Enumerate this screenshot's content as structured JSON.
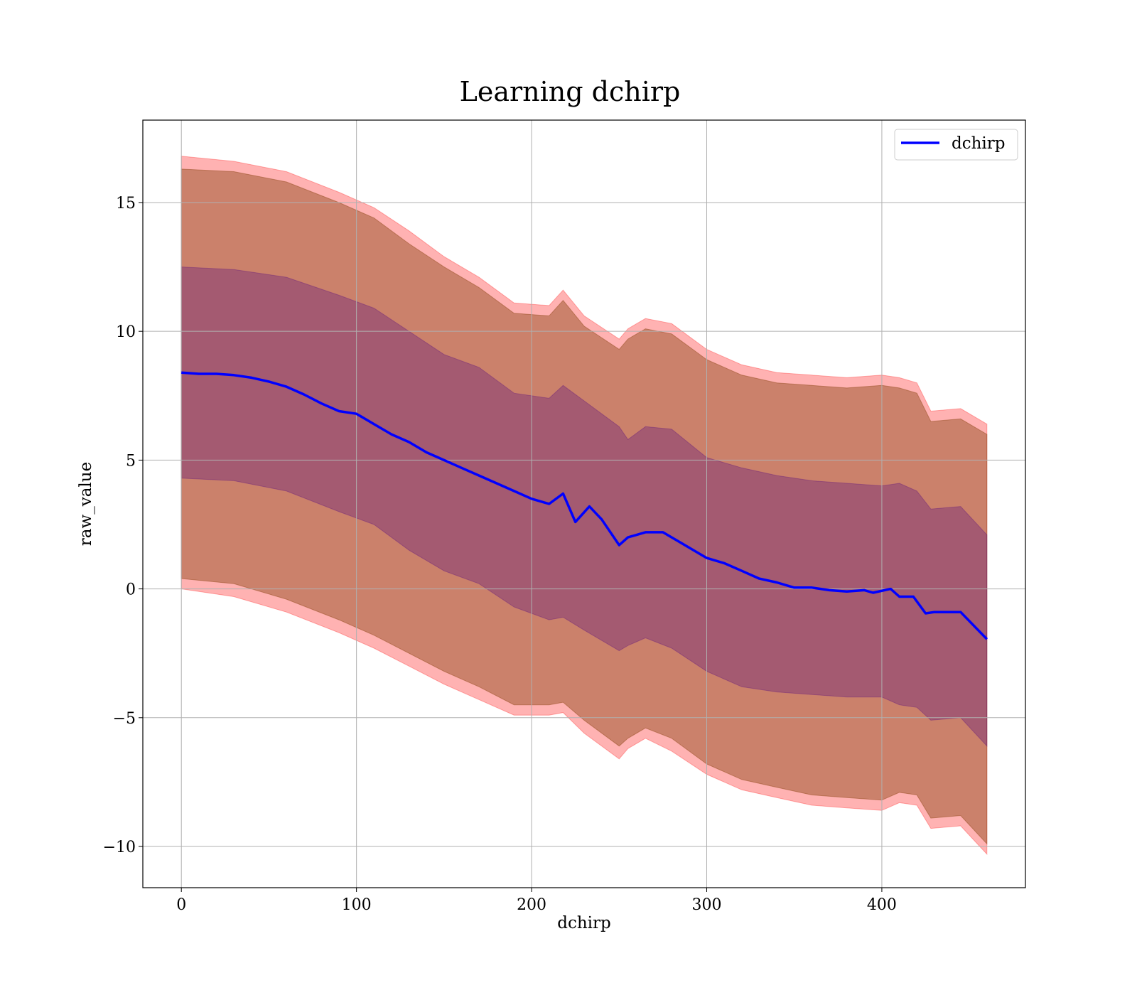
{
  "chart_data": {
    "type": "line",
    "title": "Learning dchirp",
    "xlabel": "dchirp",
    "ylabel": "raw_value",
    "xlim": [
      -22,
      482
    ],
    "ylim": [
      -11.6,
      18.2
    ],
    "xticks": [
      0,
      100,
      200,
      300,
      400
    ],
    "yticks": [
      -10,
      -5,
      0,
      5,
      10,
      15
    ],
    "ytick_labels": [
      "−10",
      "−5",
      "0",
      "5",
      "10",
      "15"
    ],
    "xtick_labels": [
      "0",
      "100",
      "200",
      "300",
      "400"
    ],
    "grid": true,
    "legend_position": "top-right",
    "series": [
      {
        "name": "dchirp",
        "color": "#0000ff",
        "x": [
          0,
          10,
          20,
          30,
          40,
          50,
          60,
          70,
          80,
          90,
          100,
          110,
          120,
          130,
          140,
          150,
          160,
          170,
          180,
          190,
          200,
          210,
          218,
          225,
          233,
          240,
          250,
          255,
          265,
          275,
          280,
          290,
          300,
          310,
          320,
          330,
          340,
          350,
          360,
          370,
          380,
          390,
          395,
          405,
          410,
          418,
          425,
          430,
          445,
          460
        ],
        "values": [
          8.4,
          8.35,
          8.35,
          8.3,
          8.2,
          8.05,
          7.85,
          7.55,
          7.2,
          6.9,
          6.8,
          6.4,
          6.0,
          5.7,
          5.3,
          5.0,
          4.7,
          4.4,
          4.1,
          3.8,
          3.5,
          3.3,
          3.7,
          2.6,
          3.2,
          2.7,
          1.7,
          2.0,
          2.2,
          2.2,
          2.0,
          1.6,
          1.2,
          1.0,
          0.7,
          0.4,
          0.25,
          0.05,
          0.05,
          -0.05,
          -0.1,
          -0.05,
          -0.15,
          0.0,
          -0.3,
          -0.3,
          -0.95,
          -0.9,
          -0.9,
          -1.95
        ]
      }
    ],
    "bands": [
      {
        "color": "#ff0000",
        "opacity": 0.3,
        "x": [
          0,
          30,
          60,
          90,
          110,
          130,
          150,
          170,
          190,
          210,
          218,
          230,
          250,
          255,
          265,
          280,
          300,
          320,
          340,
          360,
          380,
          400,
          410,
          420,
          428,
          445,
          460
        ],
        "lower": [
          0,
          -0.3,
          -0.9,
          -1.7,
          -2.3,
          -3.0,
          -3.7,
          -4.3,
          -4.9,
          -4.9,
          -4.8,
          -5.6,
          -6.6,
          -6.2,
          -5.8,
          -6.3,
          -7.2,
          -7.8,
          -8.1,
          -8.4,
          -8.5,
          -8.6,
          -8.3,
          -8.4,
          -9.3,
          -9.2,
          -10.3
        ],
        "upper": [
          16.8,
          16.6,
          16.2,
          15.4,
          14.8,
          13.9,
          12.9,
          12.1,
          11.1,
          11.0,
          11.6,
          10.6,
          9.7,
          10.1,
          10.5,
          10.3,
          9.3,
          8.7,
          8.4,
          8.3,
          8.2,
          8.3,
          8.2,
          8.0,
          6.9,
          7.0,
          6.4
        ]
      },
      {
        "color": "#8b4513",
        "opacity": 0.45,
        "x": [
          0,
          30,
          60,
          90,
          110,
          130,
          150,
          170,
          190,
          210,
          218,
          230,
          250,
          255,
          265,
          280,
          300,
          320,
          340,
          360,
          380,
          400,
          410,
          420,
          428,
          445,
          460
        ],
        "lower": [
          0.4,
          0.2,
          -0.4,
          -1.2,
          -1.8,
          -2.5,
          -3.2,
          -3.8,
          -4.5,
          -4.5,
          -4.4,
          -5.1,
          -6.1,
          -5.8,
          -5.4,
          -5.8,
          -6.8,
          -7.4,
          -7.7,
          -8.0,
          -8.1,
          -8.2,
          -7.9,
          -8.0,
          -8.9,
          -8.8,
          -9.9
        ],
        "upper": [
          16.3,
          16.2,
          15.8,
          15.0,
          14.4,
          13.4,
          12.5,
          11.7,
          10.7,
          10.6,
          11.2,
          10.2,
          9.3,
          9.7,
          10.1,
          9.9,
          8.9,
          8.3,
          8.0,
          7.9,
          7.8,
          7.9,
          7.8,
          7.6,
          6.5,
          6.6,
          6.0
        ]
      },
      {
        "color": "#4b0082",
        "opacity": 0.3,
        "x": [
          0,
          30,
          60,
          90,
          110,
          130,
          150,
          170,
          190,
          210,
          218,
          230,
          250,
          255,
          265,
          280,
          300,
          320,
          340,
          360,
          380,
          400,
          410,
          420,
          428,
          445,
          460
        ],
        "lower": [
          4.3,
          4.2,
          3.8,
          3.0,
          2.5,
          1.5,
          0.7,
          0.2,
          -0.7,
          -1.2,
          -1.1,
          -1.6,
          -2.4,
          -2.2,
          -1.9,
          -2.3,
          -3.2,
          -3.8,
          -4.0,
          -4.1,
          -4.2,
          -4.2,
          -4.5,
          -4.6,
          -5.1,
          -5.0,
          -6.1
        ],
        "upper": [
          12.5,
          12.4,
          12.1,
          11.4,
          10.9,
          10.0,
          9.1,
          8.6,
          7.6,
          7.4,
          7.9,
          7.3,
          6.3,
          5.8,
          6.3,
          6.2,
          5.1,
          4.7,
          4.4,
          4.2,
          4.1,
          4.0,
          4.1,
          3.8,
          3.1,
          3.2,
          2.1
        ]
      }
    ]
  }
}
